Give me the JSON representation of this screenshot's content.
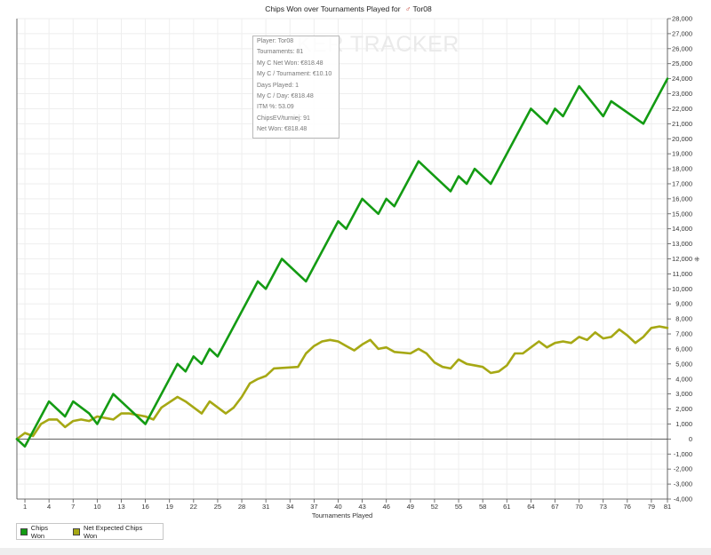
{
  "chart_data": {
    "type": "line",
    "title": "Chips Won over Tournaments Played for",
    "player_name": "Tor08",
    "xlabel": "Tournaments Played",
    "ylabel": "",
    "xlim": [
      0,
      81
    ],
    "ylim": [
      -4000,
      28000
    ],
    "x_ticks": [
      1,
      4,
      7,
      10,
      13,
      16,
      19,
      22,
      25,
      28,
      31,
      34,
      37,
      40,
      43,
      46,
      49,
      52,
      55,
      58,
      61,
      64,
      67,
      70,
      73,
      76,
      79,
      81
    ],
    "y_ticks": [
      -4000,
      -3000,
      -2000,
      -1000,
      0,
      1000,
      2000,
      3000,
      4000,
      5000,
      6000,
      7000,
      8000,
      9000,
      10000,
      11000,
      12000,
      13000,
      14000,
      15000,
      16000,
      17000,
      18000,
      19000,
      20000,
      21000,
      22000,
      23000,
      24000,
      25000,
      26000,
      27000,
      28000
    ],
    "y_tick_labels": [
      "-4,000",
      "-3,000",
      "-2,000",
      "-1,000",
      "0",
      "1,000",
      "2,000",
      "3,000",
      "4,000",
      "5,000",
      "6,000",
      "7,000",
      "8,000",
      "9,000",
      "10,000",
      "11,000",
      "12,000",
      "13,000",
      "14,000",
      "15,000",
      "16,000",
      "17,000",
      "18,000",
      "19,000",
      "20,000",
      "21,000",
      "22,000",
      "23,000",
      "24,000",
      "25,000",
      "26,000",
      "27,000",
      "28,000"
    ],
    "y_unit_mark": "⁜",
    "grid": true,
    "legend_position": "bottom-left",
    "series": [
      {
        "name": "Chips Won",
        "color": "#139b13",
        "points": [
          [
            0,
            0
          ],
          [
            1,
            -500
          ],
          [
            2,
            500
          ],
          [
            4,
            2500
          ],
          [
            6,
            1500
          ],
          [
            7,
            2500
          ],
          [
            9,
            1700
          ],
          [
            10,
            1000
          ],
          [
            12,
            3000
          ],
          [
            14,
            2000
          ],
          [
            16,
            1000
          ],
          [
            20,
            5000
          ],
          [
            21,
            4500
          ],
          [
            22,
            5500
          ],
          [
            23,
            5000
          ],
          [
            24,
            6000
          ],
          [
            25,
            5500
          ],
          [
            30,
            10500
          ],
          [
            31,
            10000
          ],
          [
            33,
            12000
          ],
          [
            36,
            10500
          ],
          [
            40,
            14500
          ],
          [
            41,
            14000
          ],
          [
            43,
            16000
          ],
          [
            45,
            15000
          ],
          [
            46,
            16000
          ],
          [
            47,
            15500
          ],
          [
            50,
            18500
          ],
          [
            54,
            16500
          ],
          [
            55,
            17500
          ],
          [
            56,
            17000
          ],
          [
            57,
            18000
          ],
          [
            59,
            17000
          ],
          [
            64,
            22000
          ],
          [
            66,
            21000
          ],
          [
            67,
            22000
          ],
          [
            68,
            21500
          ],
          [
            70,
            23500
          ],
          [
            73,
            21500
          ],
          [
            74,
            22500
          ],
          [
            78,
            21000
          ],
          [
            81,
            24000
          ]
        ]
      },
      {
        "name": "Net Expected Chips Won",
        "color": "#a6a814",
        "points": [
          [
            0,
            0
          ],
          [
            1,
            400
          ],
          [
            2,
            200
          ],
          [
            3,
            1000
          ],
          [
            4,
            1300
          ],
          [
            5,
            1300
          ],
          [
            6,
            800
          ],
          [
            7,
            1200
          ],
          [
            8,
            1300
          ],
          [
            9,
            1200
          ],
          [
            10,
            1500
          ],
          [
            11,
            1400
          ],
          [
            12,
            1300
          ],
          [
            13,
            1700
          ],
          [
            14,
            1700
          ],
          [
            15,
            1600
          ],
          [
            16,
            1500
          ],
          [
            17,
            1300
          ],
          [
            18,
            2100
          ],
          [
            20,
            2800
          ],
          [
            21,
            2500
          ],
          [
            23,
            1700
          ],
          [
            24,
            2500
          ],
          [
            26,
            1700
          ],
          [
            27,
            2100
          ],
          [
            28,
            2800
          ],
          [
            29,
            3700
          ],
          [
            30,
            4000
          ],
          [
            31,
            4200
          ],
          [
            32,
            4700
          ],
          [
            35,
            4800
          ],
          [
            36,
            5700
          ],
          [
            37,
            6200
          ],
          [
            38,
            6500
          ],
          [
            39,
            6600
          ],
          [
            40,
            6500
          ],
          [
            41,
            6200
          ],
          [
            42,
            5900
          ],
          [
            43,
            6300
          ],
          [
            44,
            6600
          ],
          [
            45,
            6000
          ],
          [
            46,
            6100
          ],
          [
            47,
            5800
          ],
          [
            49,
            5700
          ],
          [
            50,
            6000
          ],
          [
            51,
            5700
          ],
          [
            52,
            5100
          ],
          [
            53,
            4800
          ],
          [
            54,
            4700
          ],
          [
            55,
            5300
          ],
          [
            56,
            5000
          ],
          [
            58,
            4800
          ],
          [
            59,
            4400
          ],
          [
            60,
            4500
          ],
          [
            61,
            4900
          ],
          [
            62,
            5700
          ],
          [
            63,
            5700
          ],
          [
            64,
            6100
          ],
          [
            65,
            6500
          ],
          [
            66,
            6100
          ],
          [
            67,
            6400
          ],
          [
            68,
            6500
          ],
          [
            69,
            6400
          ],
          [
            70,
            6800
          ],
          [
            71,
            6600
          ],
          [
            72,
            7100
          ],
          [
            73,
            6700
          ],
          [
            74,
            6800
          ],
          [
            75,
            7300
          ],
          [
            76,
            6900
          ],
          [
            77,
            6400
          ],
          [
            78,
            6800
          ],
          [
            79,
            7400
          ],
          [
            80,
            7500
          ],
          [
            81,
            7400
          ]
        ]
      }
    ]
  },
  "info_box": {
    "lines": [
      "Player: Tor08",
      "Tournaments: 81",
      "My C Net Won: €818.48",
      "My C / Tournament: €10.10",
      "Days Played: 1",
      "My C / Day: €818.48",
      "ITM %: 53.09",
      "ChipsEV/turniej: 91",
      "Net Won: €818.48"
    ],
    "watermark": "KER TRACKER"
  },
  "legend": {
    "items": [
      {
        "label": "Chips Won",
        "color": "#139b13"
      },
      {
        "label": "Net Expected Chips Won",
        "color": "#a6a814"
      }
    ]
  }
}
